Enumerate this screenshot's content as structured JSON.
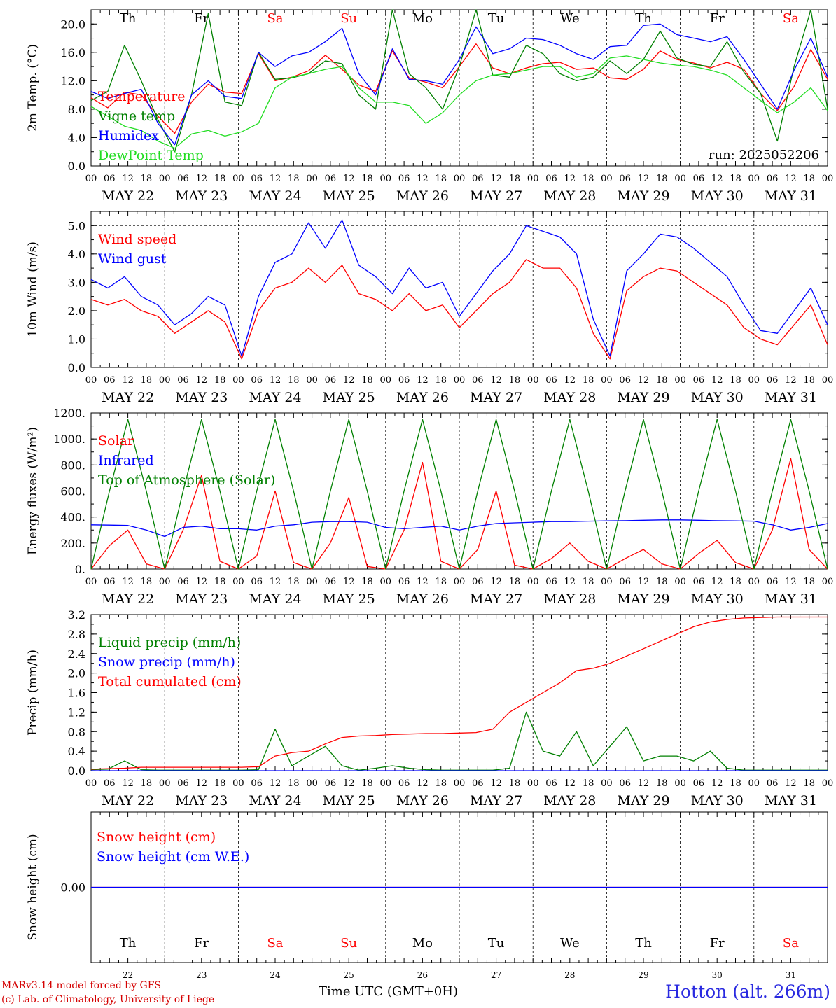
{
  "footer": {
    "credit_line1": "MARv3.14 model forced by GFS",
    "credit_line2": "(c) Lab. of Climatology, University of Liege",
    "station": "Hotton (alt. 266m)",
    "x_title": "Time UTC (GMT+0H)"
  },
  "colors": {
    "red": "#ff0000",
    "green": "#008000",
    "blue": "#0000ff",
    "light_green": "#22dd22",
    "weekend": "#ff0000",
    "weekday": "#000000"
  },
  "chart_data": [
    {
      "type": "line",
      "ylabel": "2m Temp. (°C)",
      "ylim": [
        0,
        22
      ],
      "ytick_labels": [
        "0.0",
        "4.0",
        "8.0",
        "12.0",
        "16.0",
        "20.0"
      ],
      "day_labels": [
        "Th",
        "Fr",
        "Sa",
        "Su",
        "Mo",
        "Tu",
        "We",
        "Th",
        "Fr",
        "Sa"
      ],
      "weekend_flags": [
        false,
        false,
        true,
        true,
        false,
        false,
        false,
        false,
        false,
        true
      ],
      "date_labels": [
        "MAY 22",
        "MAY 23",
        "MAY 24",
        "MAY 25",
        "MAY 26",
        "MAY 27",
        "MAY 28",
        "MAY 29",
        "MAY 30",
        "MAY 31"
      ],
      "hour_labels": [
        "00",
        "06",
        "12",
        "18"
      ],
      "annotation": "run: 2025052206",
      "x_step_hours": 6,
      "series": [
        {
          "name": "Temperature",
          "color": "#ff0000",
          "values": [
            9.6,
            8.2,
            10.4,
            10.0,
            7.0,
            4.6,
            9.0,
            11.5,
            10.4,
            10.2,
            15.8,
            12.0,
            12.5,
            13.4,
            15.6,
            13.6,
            11.4,
            10.5,
            16.2,
            12.4,
            11.8,
            11.0,
            14.0,
            17.2,
            13.8,
            13.0,
            13.8,
            14.4,
            14.6,
            13.6,
            13.8,
            12.4,
            12.2,
            13.6,
            16.2,
            15.0,
            14.5,
            13.8,
            14.6,
            13.6,
            10.2,
            7.8,
            11.2,
            16.4,
            12.2
          ]
        },
        {
          "name": "Vigne temp",
          "color": "#008000",
          "values": [
            9.2,
            10.5,
            17.0,
            12.0,
            6.5,
            2.0,
            10.0,
            21.5,
            9.0,
            8.5,
            16.0,
            12.2,
            12.4,
            13.0,
            14.8,
            14.4,
            10.0,
            8.0,
            22.0,
            13.0,
            11.0,
            8.0,
            14.0,
            22.0,
            12.8,
            12.5,
            17.0,
            15.8,
            13.0,
            12.0,
            12.5,
            14.8,
            13.0,
            15.0,
            19.0,
            15.2,
            14.3,
            14.0,
            17.5,
            13.2,
            10.2,
            3.5,
            14.0,
            22.0,
            8.0
          ]
        },
        {
          "name": "Humidex",
          "color": "#0000ff",
          "values": [
            10.5,
            9.5,
            10.2,
            10.8,
            6.0,
            3.0,
            10.0,
            12.0,
            9.8,
            9.5,
            16.0,
            14.0,
            15.5,
            16.0,
            17.5,
            19.4,
            13.0,
            10.0,
            16.5,
            12.2,
            12.0,
            11.5,
            15.0,
            19.6,
            15.8,
            16.5,
            18.0,
            17.8,
            17.0,
            15.8,
            15.0,
            16.8,
            17.0,
            19.8,
            20.0,
            18.5,
            18.0,
            17.5,
            18.2,
            15.0,
            11.5,
            8.0,
            13.5,
            18.0,
            12.5
          ]
        },
        {
          "name": "DewPoint Temp",
          "color": "#22dd22",
          "values": [
            8.4,
            7.0,
            5.6,
            5.0,
            3.5,
            2.5,
            4.5,
            5.0,
            4.2,
            4.8,
            6.0,
            11.0,
            12.5,
            13.0,
            13.6,
            14.0,
            11.0,
            9.0,
            9.0,
            8.5,
            6.0,
            7.5,
            10.0,
            12.0,
            12.8,
            13.0,
            13.5,
            14.0,
            14.0,
            12.5,
            13.0,
            15.2,
            15.5,
            15.0,
            14.5,
            14.2,
            14.0,
            13.5,
            12.8,
            11.0,
            9.2,
            7.5,
            9.0,
            11.0,
            7.8
          ]
        }
      ]
    },
    {
      "type": "line",
      "ylabel": "10m Wind (m/s)",
      "ylim": [
        0,
        5.5
      ],
      "ytick_labels": [
        "0.0",
        "1.0",
        "2.0",
        "3.0",
        "4.0",
        "5.0"
      ],
      "date_labels": [
        "MAY 22",
        "MAY 23",
        "MAY 24",
        "MAY 25",
        "MAY 26",
        "MAY 27",
        "MAY 28",
        "MAY 29",
        "MAY 30",
        "MAY 31"
      ],
      "hour_labels": [
        "00",
        "06",
        "12",
        "18"
      ],
      "x_step_hours": 6,
      "series": [
        {
          "name": "Wind speed",
          "color": "#ff0000",
          "values": [
            2.4,
            2.2,
            2.4,
            2.0,
            1.8,
            1.2,
            1.6,
            2.0,
            1.6,
            0.3,
            2.0,
            2.8,
            3.0,
            3.5,
            3.0,
            3.6,
            2.6,
            2.4,
            2.0,
            2.6,
            2.0,
            2.2,
            1.4,
            2.0,
            2.6,
            3.0,
            3.8,
            3.5,
            3.5,
            2.8,
            1.2,
            0.3,
            2.7,
            3.2,
            3.5,
            3.4,
            3.0,
            2.6,
            2.2,
            1.4,
            1.0,
            0.8,
            1.5,
            2.2,
            0.8
          ]
        },
        {
          "name": "Wind gust",
          "color": "#0000ff",
          "values": [
            3.1,
            2.8,
            3.2,
            2.5,
            2.2,
            1.5,
            1.9,
            2.5,
            2.2,
            0.4,
            2.5,
            3.7,
            4.0,
            5.1,
            4.2,
            5.2,
            3.6,
            3.2,
            2.6,
            3.5,
            2.8,
            3.0,
            1.8,
            2.6,
            3.4,
            4.0,
            5.0,
            4.8,
            4.6,
            4.0,
            1.7,
            0.4,
            3.4,
            4.0,
            4.7,
            4.6,
            4.2,
            3.7,
            3.2,
            2.2,
            1.3,
            1.2,
            2.0,
            2.8,
            1.5
          ]
        }
      ]
    },
    {
      "type": "line",
      "ylabel": "Energy fluxes (W/m²)",
      "ylim": [
        0,
        1200
      ],
      "ytick_labels": [
        "0.",
        "200.",
        "400.",
        "600.",
        "800.",
        "1000.",
        "1200."
      ],
      "date_labels": [
        "MAY 22",
        "MAY 23",
        "MAY 24",
        "MAY 25",
        "MAY 26",
        "MAY 27",
        "MAY 28",
        "MAY 29",
        "MAY 30",
        "MAY 31"
      ],
      "hour_labels": [
        "00",
        "06",
        "12",
        "18"
      ],
      "x_step_hours": 6,
      "series": [
        {
          "name": "Solar",
          "color": "#ff0000",
          "values": [
            0,
            180,
            300,
            40,
            0,
            300,
            720,
            60,
            0,
            100,
            600,
            50,
            0,
            200,
            550,
            20,
            0,
            300,
            820,
            60,
            0,
            150,
            600,
            30,
            0,
            80,
            200,
            60,
            0,
            80,
            150,
            40,
            0,
            120,
            220,
            50,
            0,
            300,
            850,
            150,
            0
          ]
        },
        {
          "name": "Infrared",
          "color": "#0000ff",
          "values": [
            340,
            338,
            335,
            300,
            250,
            320,
            330,
            310,
            310,
            300,
            330,
            340,
            360,
            365,
            365,
            360,
            320,
            310,
            320,
            330,
            300,
            330,
            350,
            355,
            360,
            365,
            365,
            368,
            370,
            372,
            375,
            378,
            378,
            375,
            372,
            370,
            368,
            340,
            300,
            320,
            350
          ]
        },
        {
          "name": "Top of Atmosphere (Solar)",
          "color": "#008000",
          "values": [
            0,
            600,
            1150,
            600,
            0,
            600,
            1150,
            600,
            0,
            600,
            1150,
            600,
            0,
            600,
            1150,
            600,
            0,
            600,
            1150,
            600,
            0,
            600,
            1150,
            600,
            0,
            600,
            1150,
            600,
            0,
            600,
            1150,
            600,
            0,
            600,
            1150,
            600,
            0,
            600,
            1150,
            600,
            0
          ]
        }
      ]
    },
    {
      "type": "line",
      "ylabel": "Precip (mm/h)",
      "ylim": [
        0,
        3.2
      ],
      "ytick_labels": [
        "0.0",
        "0.4",
        "0.8",
        "1.2",
        "1.6",
        "2.0",
        "2.4",
        "2.8",
        "3.2"
      ],
      "date_labels": [
        "MAY 22",
        "MAY 23",
        "MAY 24",
        "MAY 25",
        "MAY 26",
        "MAY 27",
        "MAY 28",
        "MAY 29",
        "MAY 30",
        "MAY 31"
      ],
      "hour_labels": [
        "00",
        "06",
        "12",
        "18"
      ],
      "x_step_hours": 6,
      "series": [
        {
          "name": "Liquid precip (mm/h)",
          "color": "#008000",
          "values": [
            0.02,
            0.03,
            0.2,
            0.02,
            0.01,
            0.01,
            0.01,
            0.01,
            0.01,
            0.01,
            0.02,
            0.85,
            0.1,
            0.3,
            0.5,
            0.1,
            0.01,
            0.05,
            0.1,
            0.05,
            0.02,
            0.01,
            0.01,
            0.01,
            0.01,
            0.05,
            1.2,
            0.4,
            0.3,
            0.8,
            0.1,
            0.5,
            0.9,
            0.2,
            0.3,
            0.3,
            0.2,
            0.4,
            0.05,
            0.01,
            0.01,
            0.01,
            0.01,
            0.01,
            0.01
          ]
        },
        {
          "name": "Snow precip (mm/h)",
          "color": "#0000ff",
          "values": [
            0,
            0,
            0,
            0,
            0,
            0,
            0,
            0,
            0,
            0,
            0,
            0,
            0,
            0,
            0,
            0,
            0,
            0,
            0,
            0,
            0,
            0,
            0,
            0,
            0,
            0,
            0,
            0,
            0,
            0,
            0,
            0,
            0,
            0,
            0,
            0,
            0,
            0,
            0,
            0,
            0,
            0,
            0,
            0,
            0
          ]
        },
        {
          "name": "Total cumulated (cm)",
          "color": "#ff0000",
          "values": [
            0.03,
            0.04,
            0.05,
            0.07,
            0.07,
            0.07,
            0.07,
            0.07,
            0.07,
            0.07,
            0.08,
            0.3,
            0.37,
            0.4,
            0.55,
            0.68,
            0.71,
            0.72,
            0.74,
            0.75,
            0.76,
            0.76,
            0.77,
            0.78,
            0.85,
            1.2,
            1.4,
            1.6,
            1.8,
            2.05,
            2.1,
            2.2,
            2.35,
            2.5,
            2.65,
            2.8,
            2.95,
            3.05,
            3.1,
            3.13,
            3.14,
            3.15,
            3.15,
            3.15,
            3.15
          ]
        }
      ]
    },
    {
      "type": "line",
      "ylabel": "Snow height (cm)",
      "ylim": [
        -1,
        1
      ],
      "ytick_labels": [
        "0.00"
      ],
      "day_labels": [
        "Th",
        "Fr",
        "Sa",
        "Su",
        "Mo",
        "Tu",
        "We",
        "Th",
        "Fr",
        "Sa"
      ],
      "weekend_flags": [
        false,
        false,
        true,
        true,
        false,
        false,
        false,
        false,
        false,
        true
      ],
      "day_numbers": [
        "22",
        "23",
        "24",
        "25",
        "26",
        "27",
        "28",
        "29",
        "30",
        "31"
      ],
      "x_step_hours": 6,
      "series": [
        {
          "name": "Snow height (cm)",
          "color": "#ff0000",
          "values": [
            0,
            0
          ]
        },
        {
          "name": "Snow height (cm W.E.)",
          "color": "#0000ff",
          "values": [
            0,
            0
          ]
        }
      ]
    }
  ]
}
